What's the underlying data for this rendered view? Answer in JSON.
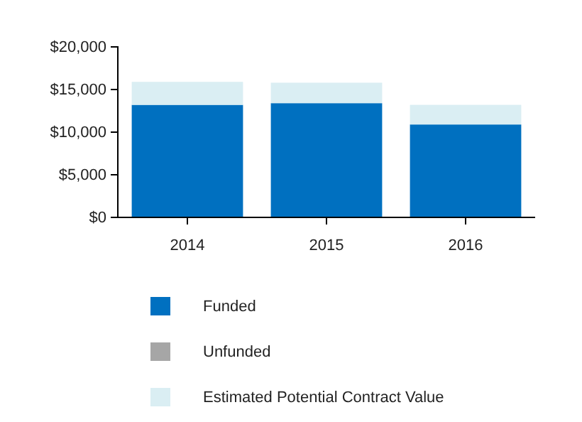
{
  "chart_data": {
    "type": "bar",
    "stacked": true,
    "categories": [
      "2014",
      "2015",
      "2016"
    ],
    "series": [
      {
        "name": "Funded",
        "color": "#0070c0",
        "values": [
          13200,
          13400,
          10900
        ]
      },
      {
        "name": "Unfunded",
        "color": "#a6a6a6",
        "values": [
          0,
          0,
          0
        ]
      },
      {
        "name": "Estimated Potential Contract Value",
        "color": "#daeef3",
        "values": [
          2700,
          2400,
          2300
        ]
      }
    ],
    "ylim": [
      0,
      20000
    ],
    "yticks": [
      {
        "value": 0,
        "label": "$0"
      },
      {
        "value": 5000,
        "label": "$5,000"
      },
      {
        "value": 10000,
        "label": "$10,000"
      },
      {
        "value": 15000,
        "label": "$15,000"
      },
      {
        "value": 20000,
        "label": "$20,000"
      }
    ],
    "legend": "bottom"
  }
}
